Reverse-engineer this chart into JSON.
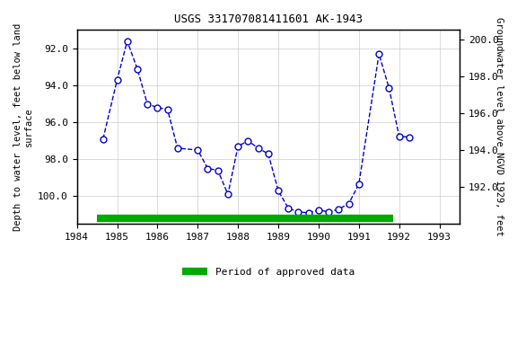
{
  "title": "USGS 331707081411601 AK-1943",
  "xlabel_left": "Depth to water level, feet below land\nsurface",
  "xlabel_right": "Groundwater level above NGVD 1929, feet",
  "ylim_left": [
    101.5,
    91.0
  ],
  "ylim_right": [
    190.0,
    200.5
  ],
  "xlim": [
    1984.0,
    1993.5
  ],
  "yticks_left": [
    92.0,
    94.0,
    96.0,
    98.0,
    100.0
  ],
  "yticks_right": [
    192.0,
    194.0,
    196.0,
    198.0,
    200.0
  ],
  "xticks": [
    1984,
    1985,
    1986,
    1987,
    1988,
    1989,
    1990,
    1991,
    1992,
    1993
  ],
  "data_x": [
    1984.65,
    1985.0,
    1985.25,
    1985.5,
    1985.75,
    1986.0,
    1986.25,
    1986.5,
    1987.0,
    1987.25,
    1987.5,
    1987.75,
    1988.0,
    1988.25,
    1988.5,
    1988.75,
    1989.0,
    1989.25,
    1989.5,
    1989.75,
    1990.0,
    1990.25,
    1990.5,
    1990.75,
    1991.0,
    1991.5,
    1991.75,
    1992.0,
    1992.25
  ],
  "data_y": [
    96.9,
    93.7,
    91.6,
    93.1,
    95.0,
    95.2,
    95.3,
    97.4,
    97.5,
    98.5,
    98.6,
    99.9,
    97.3,
    97.0,
    97.4,
    97.7,
    99.7,
    100.65,
    100.85,
    100.9,
    100.75,
    100.85,
    100.7,
    100.4,
    99.35,
    92.3,
    94.15,
    96.75,
    96.8
  ],
  "line_color": "#0000CC",
  "marker_color": "#0000CC",
  "marker_face": "white",
  "line_style": "dashed",
  "approved_bar_color": "#00AA00",
  "approved_bar_xstart": 1984.5,
  "approved_bar_xend": 1991.85,
  "approved_bar_y": 101.2,
  "legend_label": "Period of approved data",
  "bg_color": "#ffffff",
  "plot_bg_color": "#ffffff",
  "grid_color": "#cccccc"
}
